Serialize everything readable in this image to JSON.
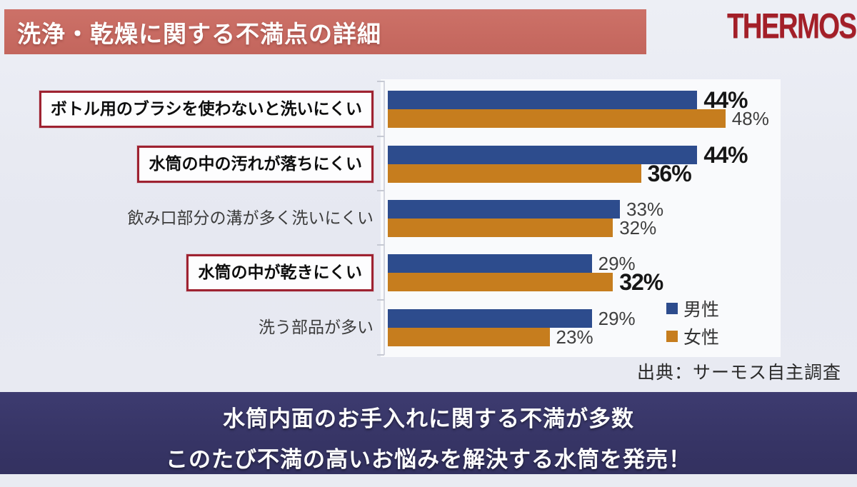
{
  "header": {
    "title": "洗浄・乾燥に関する不満点の詳細",
    "brand": "THERMOS"
  },
  "chart_data": {
    "type": "bar",
    "orientation": "horizontal",
    "unit": "%",
    "xlim": [
      0,
      56
    ],
    "grid": false,
    "legend_position": "bottom-right",
    "categories": [
      "ボトル用のブラシを使わないと洗いにくい",
      "水筒の中の汚れが落ちにくい",
      "飲み口部分の溝が多く洗いにくい",
      "水筒の中が乾きにくい",
      "洗う部品が多い"
    ],
    "highlighted_categories": [
      true,
      true,
      false,
      true,
      false
    ],
    "series": [
      {
        "name": "男性",
        "color": "#2d4c8d",
        "values": [
          44,
          44,
          33,
          29,
          29
        ],
        "labels": [
          "44%",
          "44%",
          "33%",
          "29%",
          "29%"
        ],
        "bold_labels": [
          true,
          true,
          false,
          false,
          false
        ]
      },
      {
        "name": "女性",
        "color": "#c67d1e",
        "values": [
          48,
          36,
          32,
          32,
          23
        ],
        "labels": [
          "48%",
          "36%",
          "32%",
          "32%",
          "23%"
        ],
        "bold_labels": [
          false,
          true,
          false,
          true,
          false
        ]
      }
    ],
    "source": "出典：サーモス自主調査"
  },
  "footer": {
    "line1": "水筒内面のお手入れに関する不満が多数",
    "line2": "このたび不満の高いお悩みを解決する水筒を発売！"
  },
  "colors": {
    "title_banner_bg": "#c76a61",
    "footer_banner_bg": "#373566",
    "brand_red": "#a31f28",
    "highlight_box_border": "#9e2231"
  }
}
